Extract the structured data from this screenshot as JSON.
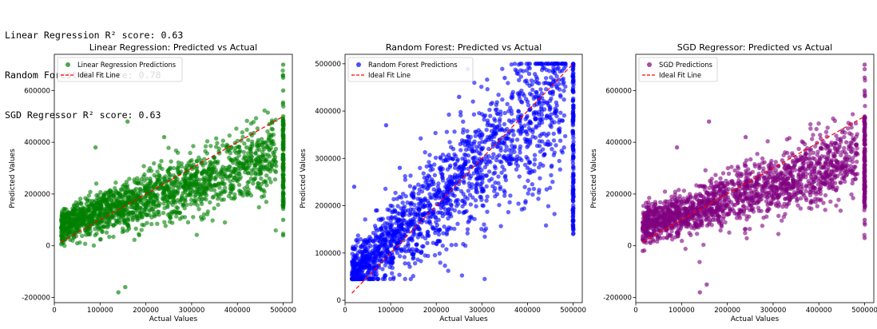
{
  "scores": [
    "Linear Regression R² score: 0.63",
    "Random Forest R² score: 0.78",
    "SGD Regressor R² score: 0.63"
  ],
  "chart_data": [
    {
      "type": "scatter",
      "title": "Linear Regression: Predicted vs Actual",
      "xlabel": "Actual Values",
      "ylabel": "Predicted Values",
      "xlim": [
        0,
        520000
      ],
      "ylim": [
        -220000,
        740000
      ],
      "xticks": [
        0,
        100000,
        200000,
        300000,
        400000,
        500000
      ],
      "yticks": [
        -200000,
        0,
        200000,
        400000,
        600000
      ],
      "color": "#008000",
      "legend": "upper left",
      "series": [
        {
          "name": "Linear Regression Predictions",
          "color": "#008000",
          "points": [
            [
              30000,
              40000
            ],
            [
              45000,
              90000
            ],
            [
              60000,
              110000
            ],
            [
              80000,
              160000
            ],
            [
              100000,
              170000
            ],
            [
              120000,
              190000
            ],
            [
              140000,
              200000
            ],
            [
              150000,
              230000
            ],
            [
              170000,
              210000
            ],
            [
              190000,
              240000
            ],
            [
              210000,
              250000
            ],
            [
              230000,
              270000
            ],
            [
              250000,
              280000
            ],
            [
              270000,
              300000
            ],
            [
              290000,
              310000
            ],
            [
              320000,
              330000
            ],
            [
              350000,
              340000
            ],
            [
              380000,
              370000
            ],
            [
              420000,
              380000
            ],
            [
              460000,
              400000
            ],
            [
              90000,
              380000
            ],
            [
              130000,
              80000
            ],
            [
              200000,
              120000
            ],
            [
              160000,
              480000
            ],
            [
              240000,
              420000
            ],
            [
              330000,
              220000
            ],
            [
              400000,
              250000
            ],
            [
              450000,
              300000
            ],
            [
              140000,
              -180000
            ],
            [
              155000,
              -160000
            ],
            [
              470000,
              470000
            ],
            [
              480000,
              350000
            ],
            [
              500000,
              700000
            ],
            [
              500000,
              650000
            ],
            [
              500000,
              600000
            ],
            [
              500000,
              500000
            ],
            [
              500000,
              450000
            ],
            [
              500000,
              400000
            ],
            [
              500000,
              350000
            ],
            [
              500000,
              300000
            ],
            [
              500000,
              250000
            ],
            [
              500000,
              200000
            ],
            [
              500000,
              150000
            ],
            [
              500000,
              100000
            ],
            [
              500000,
              40000
            ]
          ]
        },
        {
          "name": "Ideal Fit Line",
          "color": "#ff0000",
          "points": [
            [
              15000,
              15000
            ],
            [
              500000,
              500000
            ]
          ]
        }
      ]
    },
    {
      "type": "scatter",
      "title": "Random Forest: Predicted vs Actual",
      "xlabel": "Actual Values",
      "ylabel": "Predicted Values",
      "xlim": [
        0,
        520000
      ],
      "ylim": [
        -5000,
        520000
      ],
      "xticks": [
        0,
        100000,
        200000,
        300000,
        400000,
        500000
      ],
      "yticks": [
        0,
        100000,
        200000,
        300000,
        400000,
        500000
      ],
      "color": "#0000ff",
      "legend": "upper left",
      "series": [
        {
          "name": "Random Forest Predictions",
          "color": "#0000ff",
          "points": [
            [
              20000,
              240000
            ],
            [
              40000,
              70000
            ],
            [
              60000,
              80000
            ],
            [
              80000,
              100000
            ],
            [
              100000,
              120000
            ],
            [
              120000,
              140000
            ],
            [
              140000,
              160000
            ],
            [
              160000,
              180000
            ],
            [
              180000,
              200000
            ],
            [
              200000,
              220000
            ],
            [
              220000,
              240000
            ],
            [
              240000,
              260000
            ],
            [
              260000,
              280000
            ],
            [
              280000,
              300000
            ],
            [
              300000,
              320000
            ],
            [
              320000,
              340000
            ],
            [
              340000,
              360000
            ],
            [
              360000,
              380000
            ],
            [
              380000,
              400000
            ],
            [
              400000,
              420000
            ],
            [
              420000,
              440000
            ],
            [
              440000,
              460000
            ],
            [
              460000,
              480000
            ],
            [
              480000,
              490000
            ],
            [
              90000,
              370000
            ],
            [
              120000,
              280000
            ],
            [
              150000,
              90000
            ],
            [
              200000,
              120000
            ],
            [
              250000,
              430000
            ],
            [
              300000,
              230000
            ],
            [
              350000,
              470000
            ],
            [
              400000,
              280000
            ],
            [
              450000,
              330000
            ],
            [
              100000,
              200000
            ],
            [
              70000,
              190000
            ],
            [
              500000,
              500000
            ],
            [
              500000,
              450000
            ],
            [
              500000,
              400000
            ],
            [
              500000,
              350000
            ],
            [
              500000,
              300000
            ],
            [
              500000,
              250000
            ],
            [
              500000,
              170000
            ],
            [
              500000,
              140000
            ]
          ]
        },
        {
          "name": "Ideal Fit Line",
          "color": "#ff0000",
          "points": [
            [
              15000,
              15000
            ],
            [
              500000,
              500000
            ]
          ]
        }
      ]
    },
    {
      "type": "scatter",
      "title": "SGD Regressor: Predicted vs Actual",
      "xlabel": "Actual Values",
      "ylabel": "Predicted Values",
      "xlim": [
        0,
        520000
      ],
      "ylim": [
        -220000,
        740000
      ],
      "xticks": [
        0,
        100000,
        200000,
        300000,
        400000,
        500000
      ],
      "yticks": [
        -200000,
        0,
        200000,
        400000,
        600000
      ],
      "color": "#800080",
      "legend": "upper left",
      "series": [
        {
          "name": "SGD Predictions",
          "color": "#800080",
          "points": [
            [
              30000,
              40000
            ],
            [
              45000,
              90000
            ],
            [
              60000,
              110000
            ],
            [
              80000,
              160000
            ],
            [
              100000,
              170000
            ],
            [
              120000,
              190000
            ],
            [
              140000,
              200000
            ],
            [
              150000,
              230000
            ],
            [
              170000,
              210000
            ],
            [
              190000,
              240000
            ],
            [
              210000,
              250000
            ],
            [
              230000,
              270000
            ],
            [
              250000,
              280000
            ],
            [
              270000,
              300000
            ],
            [
              290000,
              310000
            ],
            [
              320000,
              330000
            ],
            [
              350000,
              340000
            ],
            [
              380000,
              370000
            ],
            [
              420000,
              380000
            ],
            [
              460000,
              400000
            ],
            [
              90000,
              380000
            ],
            [
              130000,
              80000
            ],
            [
              200000,
              120000
            ],
            [
              160000,
              480000
            ],
            [
              240000,
              420000
            ],
            [
              330000,
              220000
            ],
            [
              400000,
              250000
            ],
            [
              450000,
              300000
            ],
            [
              140000,
              -180000
            ],
            [
              155000,
              -150000
            ],
            [
              470000,
              470000
            ],
            [
              480000,
              350000
            ],
            [
              500000,
              700000
            ],
            [
              500000,
              650000
            ],
            [
              500000,
              600000
            ],
            [
              500000,
              500000
            ],
            [
              500000,
              450000
            ],
            [
              500000,
              400000
            ],
            [
              500000,
              350000
            ],
            [
              500000,
              300000
            ],
            [
              500000,
              250000
            ],
            [
              500000,
              200000
            ],
            [
              500000,
              150000
            ],
            [
              500000,
              100000
            ],
            [
              500000,
              30000
            ]
          ]
        },
        {
          "name": "Ideal Fit Line",
          "color": "#ff0000",
          "points": [
            [
              15000,
              15000
            ],
            [
              500000,
              500000
            ]
          ]
        }
      ]
    }
  ]
}
